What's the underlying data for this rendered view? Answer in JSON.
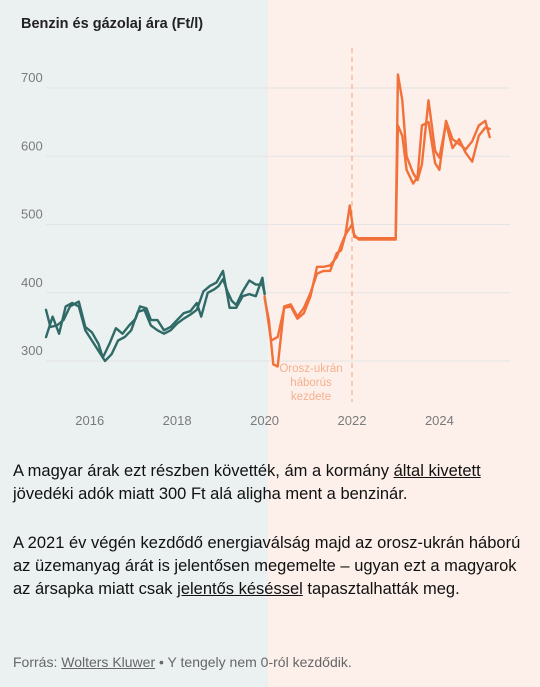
{
  "colors": {
    "left_bg": "#ebf1f0",
    "right_bg": "#fdf0ea",
    "pre_series": "#2f6a67",
    "post_series": "#f2703a",
    "annotation": "#f5b08e",
    "grid": "#e4e4e4",
    "tick_label": "#7a7a7a"
  },
  "chart_data": {
    "type": "line",
    "title": "Benzin és gázolaj ára (Ft/l)",
    "xlabel": "",
    "ylabel": "",
    "x_ticks": [
      "2016",
      "2018",
      "2020",
      "2022",
      "2024"
    ],
    "y_ticks": [
      300,
      400,
      500,
      600,
      700
    ],
    "xlim": [
      2015.0,
      2025.5
    ],
    "ylim": [
      290,
      725
    ],
    "grid": true,
    "annotation": {
      "x": 2022.0,
      "lines": [
        "Orosz-ukrán",
        "háborús",
        "kezdete"
      ]
    },
    "series": [
      {
        "part": "before-2020",
        "color": "#2f6a67",
        "points": [
          [
            2015.0,
            375
          ],
          [
            2015.1,
            350
          ],
          [
            2015.25,
            352
          ],
          [
            2015.4,
            360
          ],
          [
            2015.55,
            380
          ],
          [
            2015.75,
            387
          ],
          [
            2015.9,
            350
          ],
          [
            2016.05,
            342
          ],
          [
            2016.2,
            325
          ],
          [
            2016.3,
            305
          ],
          [
            2016.45,
            325
          ],
          [
            2016.6,
            348
          ],
          [
            2016.75,
            340
          ],
          [
            2016.9,
            352
          ],
          [
            2017.05,
            362
          ],
          [
            2017.15,
            380
          ],
          [
            2017.3,
            377
          ],
          [
            2017.4,
            360
          ],
          [
            2017.55,
            360
          ],
          [
            2017.7,
            345
          ],
          [
            2017.85,
            350
          ],
          [
            2018.0,
            360
          ],
          [
            2018.15,
            370
          ],
          [
            2018.3,
            373
          ],
          [
            2018.45,
            385
          ],
          [
            2018.55,
            365
          ],
          [
            2018.7,
            400
          ],
          [
            2018.85,
            405
          ],
          [
            2018.95,
            410
          ],
          [
            2019.05,
            420
          ],
          [
            2019.15,
            402
          ],
          [
            2019.25,
            388
          ],
          [
            2019.35,
            382
          ],
          [
            2019.5,
            402
          ],
          [
            2019.65,
            418
          ],
          [
            2019.8,
            412
          ],
          [
            2019.95,
            412
          ],
          [
            2020.0,
            400
          ]
        ]
      },
      {
        "part": "before-2020",
        "color": "#2f6a67",
        "points": [
          [
            2015.0,
            335
          ],
          [
            2015.15,
            365
          ],
          [
            2015.3,
            340
          ],
          [
            2015.45,
            380
          ],
          [
            2015.6,
            385
          ],
          [
            2015.75,
            380
          ],
          [
            2015.9,
            345
          ],
          [
            2016.05,
            330
          ],
          [
            2016.2,
            315
          ],
          [
            2016.35,
            300
          ],
          [
            2016.5,
            310
          ],
          [
            2016.65,
            330
          ],
          [
            2016.8,
            335
          ],
          [
            2016.95,
            345
          ],
          [
            2017.1,
            372
          ],
          [
            2017.25,
            375
          ],
          [
            2017.4,
            352
          ],
          [
            2017.55,
            345
          ],
          [
            2017.7,
            340
          ],
          [
            2017.85,
            345
          ],
          [
            2018.0,
            355
          ],
          [
            2018.15,
            362
          ],
          [
            2018.3,
            368
          ],
          [
            2018.45,
            375
          ],
          [
            2018.6,
            402
          ],
          [
            2018.75,
            410
          ],
          [
            2018.9,
            415
          ],
          [
            2019.05,
            432
          ],
          [
            2019.2,
            378
          ],
          [
            2019.35,
            378
          ],
          [
            2019.5,
            395
          ],
          [
            2019.65,
            398
          ],
          [
            2019.8,
            395
          ],
          [
            2019.95,
            422
          ],
          [
            2020.0,
            398
          ]
        ]
      },
      {
        "part": "from-2020",
        "color": "#f2703a",
        "points": [
          [
            2020.0,
            392
          ],
          [
            2020.1,
            360
          ],
          [
            2020.2,
            295
          ],
          [
            2020.3,
            292
          ],
          [
            2020.45,
            380
          ],
          [
            2020.6,
            383
          ],
          [
            2020.75,
            365
          ],
          [
            2020.9,
            378
          ],
          [
            2021.05,
            400
          ],
          [
            2021.2,
            428
          ],
          [
            2021.35,
            432
          ],
          [
            2021.5,
            432
          ],
          [
            2021.65,
            458
          ],
          [
            2021.75,
            462
          ],
          [
            2021.85,
            485
          ],
          [
            2022.0,
            500
          ],
          [
            2022.05,
            485
          ],
          [
            2022.15,
            478
          ],
          [
            2023.0,
            478
          ],
          [
            2023.05,
            720
          ],
          [
            2023.15,
            682
          ],
          [
            2023.25,
            600
          ],
          [
            2023.4,
            575
          ],
          [
            2023.5,
            565
          ],
          [
            2023.6,
            588
          ],
          [
            2023.75,
            682
          ],
          [
            2023.9,
            608
          ],
          [
            2024.0,
            598
          ],
          [
            2024.15,
            648
          ],
          [
            2024.3,
            612
          ],
          [
            2024.45,
            625
          ],
          [
            2024.6,
            605
          ],
          [
            2024.75,
            592
          ],
          [
            2024.9,
            630
          ],
          [
            2025.05,
            642
          ],
          [
            2025.15,
            640
          ]
        ]
      },
      {
        "part": "from-2020",
        "color": "#f2703a",
        "points": [
          [
            2020.0,
            395
          ],
          [
            2020.15,
            330
          ],
          [
            2020.3,
            335
          ],
          [
            2020.45,
            378
          ],
          [
            2020.6,
            380
          ],
          [
            2020.75,
            362
          ],
          [
            2020.9,
            370
          ],
          [
            2021.05,
            395
          ],
          [
            2021.2,
            438
          ],
          [
            2021.35,
            438
          ],
          [
            2021.5,
            440
          ],
          [
            2021.65,
            452
          ],
          [
            2021.75,
            470
          ],
          [
            2021.85,
            485
          ],
          [
            2021.95,
            528
          ],
          [
            2022.05,
            482
          ],
          [
            2022.15,
            480
          ],
          [
            2023.0,
            480
          ],
          [
            2023.05,
            645
          ],
          [
            2023.15,
            630
          ],
          [
            2023.25,
            580
          ],
          [
            2023.4,
            560
          ],
          [
            2023.5,
            570
          ],
          [
            2023.6,
            645
          ],
          [
            2023.75,
            650
          ],
          [
            2023.9,
            590
          ],
          [
            2024.0,
            580
          ],
          [
            2024.15,
            652
          ],
          [
            2024.3,
            625
          ],
          [
            2024.45,
            618
          ],
          [
            2024.6,
            610
          ],
          [
            2024.75,
            622
          ],
          [
            2024.9,
            645
          ],
          [
            2025.05,
            652
          ],
          [
            2025.15,
            628
          ]
        ]
      }
    ]
  },
  "text": {
    "p1_a": "A magyar árak ezt részben követték, ám a kormány ",
    "p1_link": "által kivetett",
    "p1_b": " jövedéki adók miatt 300 Ft alá aligha ment a benzinár.",
    "p2_a": "A 2021 év végén kezdődő energiaválság majd az orosz-ukrán háború az üzemanyag árát is jelentősen megemelte – ugyan ezt a magyarok az ársapka miatt csak ",
    "p2_link": "jelentős késéssel",
    "p2_b": " tapasztalhatták meg."
  },
  "source": {
    "label": "Forrás: ",
    "link": "Wolters Kluwer",
    "note": " • Y tengely nem 0-ról kezdődik."
  }
}
